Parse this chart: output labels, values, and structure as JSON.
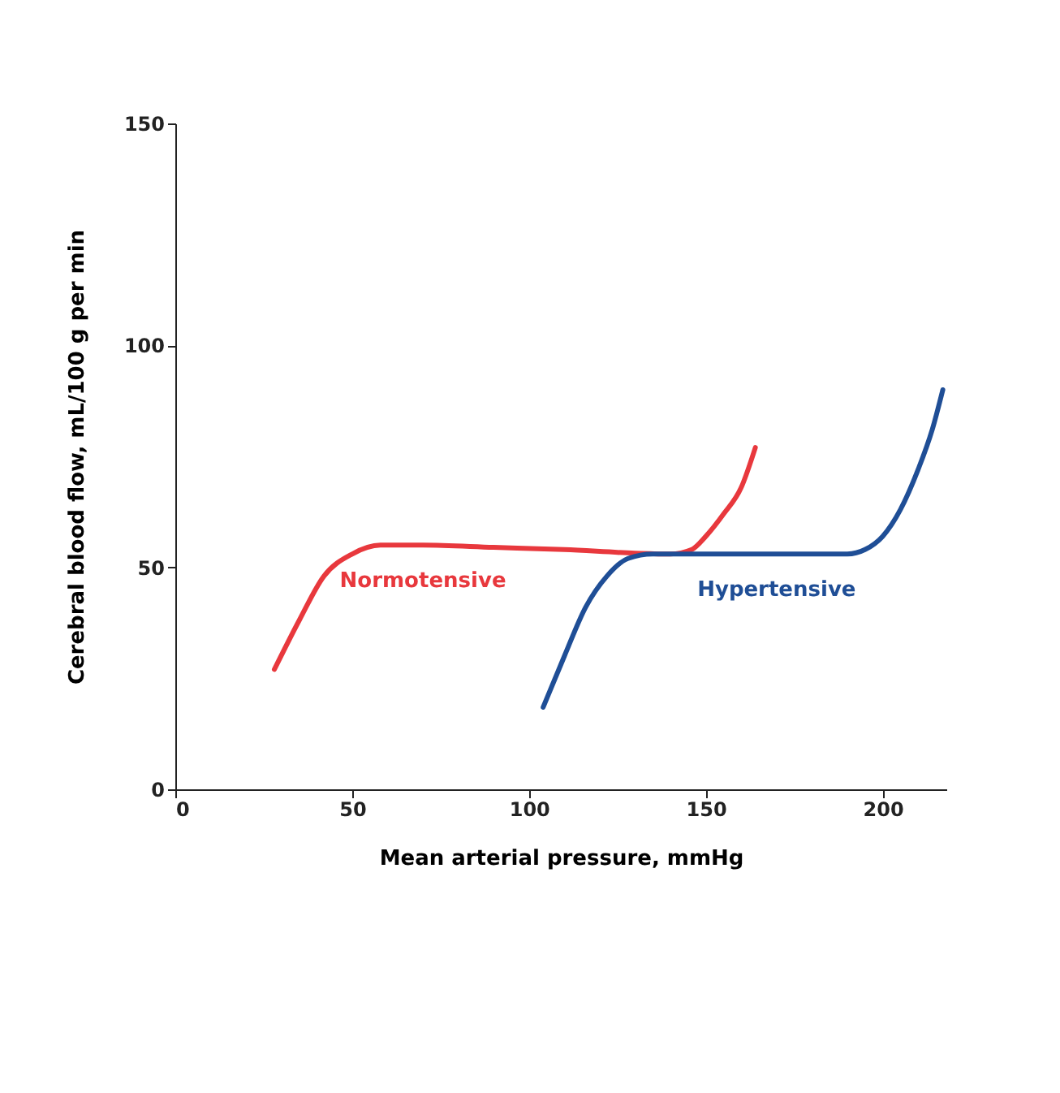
{
  "chart_data": {
    "type": "line",
    "xlabel": "Mean arterial pressure, mmHg",
    "ylabel": "Cerebral blood flow, mL/100 g per min",
    "xlim": [
      0,
      218
    ],
    "xticks": [
      0,
      50,
      100,
      150,
      200
    ],
    "ylim": [
      0,
      150
    ],
    "yticks": [
      0,
      50,
      100,
      150
    ],
    "grid": false,
    "legend": false,
    "marker": "none",
    "line_style": "solid",
    "series": [
      {
        "name": "Normotensive",
        "color": "#e8383d",
        "x": [
          28,
          35,
          42,
          50,
          58,
          70,
          90,
          110,
          130,
          140,
          146,
          150,
          155,
          160,
          164
        ],
        "values": [
          27,
          38,
          48,
          53,
          55,
          55,
          54.5,
          54,
          53.2,
          53,
          54,
          57,
          62,
          68,
          77
        ]
      },
      {
        "name": "Hypertensive",
        "color": "#1f4e96",
        "x": [
          104,
          110,
          116,
          122,
          128,
          135,
          150,
          170,
          190,
          195,
          200,
          205,
          210,
          214,
          217
        ],
        "values": [
          18.5,
          30,
          41,
          48,
          52,
          53,
          53,
          53,
          53,
          54,
          57,
          63,
          72,
          81,
          90
        ]
      }
    ]
  }
}
